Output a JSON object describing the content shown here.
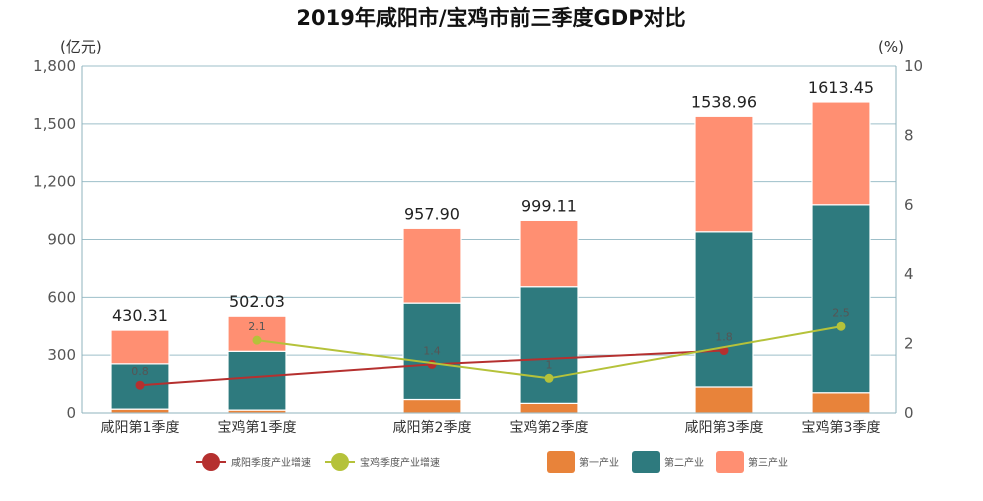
{
  "chart_data": {
    "type": "bar",
    "title": "2019年咸阳市/宝鸡市前三季度GDP对比",
    "ylabel": "(亿元)",
    "y2label": "(%)",
    "ylim": [
      0,
      1800
    ],
    "y2lim": [
      0,
      10
    ],
    "y_ticks": [
      "0",
      "300",
      "600",
      "900",
      "1,200",
      "1,500",
      "1,800"
    ],
    "y2_ticks": [
      "0",
      "2",
      "4",
      "6",
      "8",
      "10"
    ],
    "categories": [
      "咸阳第1季度",
      "宝鸡第1季度",
      "咸阳第2季度",
      "宝鸡第2季度",
      "咸阳第3季度",
      "宝鸡第3季度"
    ],
    "stack_series": [
      {
        "name": "第一产业",
        "color": "#E8833A",
        "values": [
          20,
          15,
          70,
          50,
          135,
          105
        ]
      },
      {
        "name": "第二产业",
        "color": "#2E7A7E",
        "values": [
          235,
          305,
          500,
          605,
          805,
          975
        ]
      },
      {
        "name": "第三产业",
        "color": "#FF8F72",
        "values": [
          175.31,
          182.03,
          387.9,
          344.11,
          598.96,
          533.45
        ]
      }
    ],
    "totals": [
      "430.31",
      "502.03",
      "957.90",
      "999.11",
      "1538.96",
      "1613.45"
    ],
    "line_series": [
      {
        "name": "咸阳季度产业增速",
        "color": "#B5302F",
        "points": [
          {
            "category": 0,
            "value": 0.8,
            "label": "0.8"
          },
          {
            "category": 2,
            "value": 1.4,
            "label": "1.4"
          },
          {
            "category": 4,
            "value": 1.8,
            "label": "1.8"
          }
        ]
      },
      {
        "name": "宝鸡季度产业增速",
        "color": "#B5C23A",
        "points": [
          {
            "category": 1,
            "value": 2.1,
            "label": "2.1"
          },
          {
            "category": 3,
            "value": 1.0,
            "label": "1"
          },
          {
            "category": 5,
            "value": 2.5,
            "label": "2.5"
          }
        ]
      }
    ],
    "grid": true,
    "legend_position": "bottom"
  }
}
